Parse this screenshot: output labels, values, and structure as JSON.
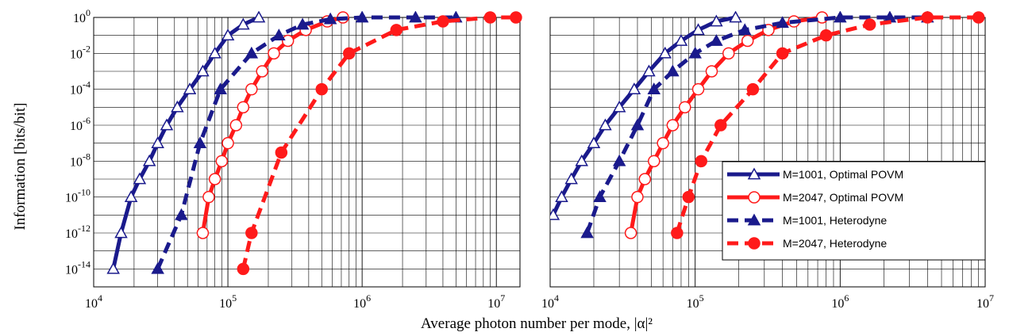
{
  "figure": {
    "ylabel": "Information [bits/bit]",
    "xlabel": "Average photon number per mode, |α|²"
  },
  "colors": {
    "navy": "#1a1a8c",
    "red": "#ff1a1a"
  },
  "chart_data": [
    {
      "type": "line",
      "title": "",
      "xlabel": "Average photon number per mode, |α|²",
      "ylabel": "Information [bits/bit]",
      "xscale": "log",
      "yscale": "log",
      "xlim": [
        10000,
        15000000
      ],
      "ylim": [
        1e-15,
        1
      ],
      "xticks": [
        {
          "base": "10",
          "exp": "4",
          "value": 10000
        },
        {
          "base": "10",
          "exp": "5",
          "value": 100000
        },
        {
          "base": "10",
          "exp": "6",
          "value": 1000000
        },
        {
          "base": "10",
          "exp": "7",
          "value": 10000000
        }
      ],
      "yticks": [
        {
          "base": "10",
          "exp": "0",
          "value": 1
        },
        {
          "base": "10",
          "exp": "-2",
          "value": 0.01
        },
        {
          "base": "10",
          "exp": "-4",
          "value": 0.0001
        },
        {
          "base": "10",
          "exp": "-6",
          "value": 1e-06
        },
        {
          "base": "10",
          "exp": "-8",
          "value": 1e-08
        },
        {
          "base": "10",
          "exp": "-10",
          "value": 1e-10
        },
        {
          "base": "10",
          "exp": "-12",
          "value": 1e-12
        },
        {
          "base": "10",
          "exp": "-14",
          "value": 1e-14
        }
      ],
      "grid": true,
      "series": [
        {
          "style": "solid-open-triangle",
          "color": "#1a1a8c",
          "x": [
            14000,
            16000,
            19000,
            22000,
            26000,
            30000,
            35000,
            42000,
            52000,
            65000,
            80000,
            100000,
            130000,
            170000
          ],
          "y": [
            1e-14,
            1e-12,
            1e-10,
            1e-09,
            1e-08,
            1e-07,
            1e-06,
            1e-05,
            0.0001,
            0.001,
            0.01,
            0.1,
            0.4,
            1
          ]
        },
        {
          "style": "solid-open-circle",
          "color": "#ff1a1a",
          "x": [
            65000,
            72000,
            80000,
            90000,
            100000,
            115000,
            130000,
            150000,
            180000,
            220000,
            280000,
            380000,
            550000,
            720000
          ],
          "y": [
            1e-12,
            1e-10,
            1e-09,
            1e-08,
            1e-07,
            1e-06,
            1e-05,
            0.0001,
            0.001,
            0.01,
            0.05,
            0.2,
            0.6,
            1
          ]
        },
        {
          "style": "dashed-filled-triangle",
          "color": "#1a1a8c",
          "x": [
            30000,
            45000,
            62000,
            88000,
            150000,
            240000,
            360000,
            580000,
            1000000,
            2500000,
            5000000
          ],
          "y": [
            1e-14,
            1e-11,
            1e-07,
            0.0001,
            0.01,
            0.1,
            0.4,
            0.8,
            1,
            1,
            1
          ]
        },
        {
          "style": "dashed-filled-circle",
          "color": "#ff1a1a",
          "x": [
            130000,
            150000,
            250000,
            500000,
            800000,
            1800000,
            4000000,
            9000000,
            14000000
          ],
          "y": [
            1e-14,
            1e-12,
            3e-08,
            0.0001,
            0.01,
            0.2,
            0.6,
            1,
            1
          ]
        }
      ]
    },
    {
      "type": "line",
      "title": "",
      "xlabel": "Average photon number per mode, |α|²",
      "ylabel": "Information [bits/bit]",
      "xscale": "log",
      "yscale": "log",
      "xlim": [
        10000,
        10000000
      ],
      "ylim": [
        1e-15,
        1
      ],
      "xticks": [
        {
          "base": "10",
          "exp": "4",
          "value": 10000
        },
        {
          "base": "10",
          "exp": "5",
          "value": 100000
        },
        {
          "base": "10",
          "exp": "6",
          "value": 1000000
        },
        {
          "base": "10",
          "exp": "7",
          "value": 10000000
        }
      ],
      "grid": true,
      "legend": {
        "position": "bottom-right",
        "entries": [
          {
            "label": "M=1001, Optimal POVM",
            "color": "#1a1a8c",
            "dash": false,
            "marker": "open-triangle"
          },
          {
            "label": "M=2047, Optimal POVM",
            "color": "#ff1a1a",
            "dash": false,
            "marker": "open-circle"
          },
          {
            "label": "M=1001, Heterodyne",
            "color": "#1a1a8c",
            "dash": true,
            "marker": "filled-triangle"
          },
          {
            "label": "M=2047, Heterodyne",
            "color": "#ff1a1a",
            "dash": true,
            "marker": "filled-circle"
          }
        ]
      },
      "series": [
        {
          "style": "solid-open-triangle",
          "color": "#1a1a8c",
          "x": [
            10500,
            12000,
            14000,
            16500,
            20000,
            24000,
            30000,
            38000,
            48000,
            62000,
            80000,
            105000,
            140000,
            190000
          ],
          "y": [
            1e-11,
            1e-10,
            1e-09,
            1e-08,
            1e-07,
            1e-06,
            1e-05,
            0.0001,
            0.001,
            0.01,
            0.05,
            0.2,
            0.6,
            1
          ]
        },
        {
          "style": "solid-open-circle",
          "color": "#ff1a1a",
          "x": [
            36000,
            40000,
            45000,
            52000,
            60000,
            70000,
            85000,
            105000,
            130000,
            170000,
            230000,
            320000,
            480000,
            750000
          ],
          "y": [
            1e-12,
            1e-10,
            1e-09,
            1e-08,
            1e-07,
            1e-06,
            1e-05,
            0.0001,
            0.001,
            0.01,
            0.05,
            0.2,
            0.6,
            1
          ]
        },
        {
          "style": "dashed-filled-triangle",
          "color": "#1a1a8c",
          "x": [
            18000,
            22000,
            30000,
            40000,
            52000,
            70000,
            100000,
            140000,
            220000,
            400000,
            1000000,
            2200000,
            4000000
          ],
          "y": [
            1e-12,
            1e-10,
            1e-08,
            1e-06,
            0.0001,
            0.001,
            0.01,
            0.05,
            0.2,
            0.5,
            1,
            1,
            1
          ]
        },
        {
          "style": "dashed-filled-circle",
          "color": "#ff1a1a",
          "x": [
            75000,
            90000,
            110000,
            150000,
            250000,
            400000,
            800000,
            1600000,
            4000000,
            9000000
          ],
          "y": [
            1e-12,
            1e-10,
            1e-08,
            1e-06,
            0.0001,
            0.01,
            0.1,
            0.4,
            1,
            1
          ]
        }
      ]
    }
  ]
}
